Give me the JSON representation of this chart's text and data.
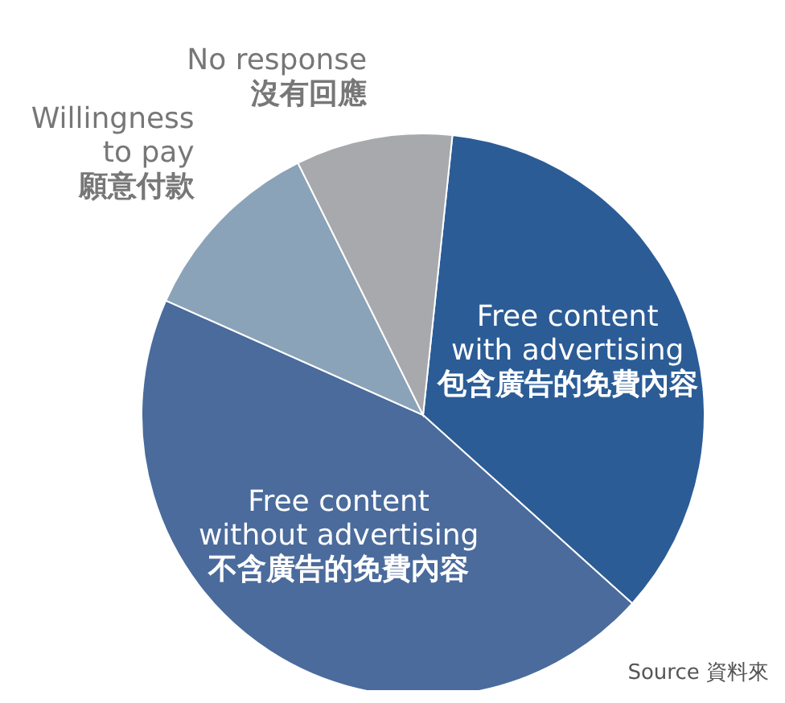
{
  "chart_data": {
    "type": "pie",
    "categories": [
      "Free content\nwith advertising\n包含廣告的免費內容",
      "Free content\nwithout advertising\n不含廣告的免費內容",
      "Willingness\nto pay\n願意付款",
      "No response\n沒有回應"
    ],
    "values": [
      35,
      45,
      11,
      9
    ],
    "colors": [
      "#2b5c96",
      "#4a6b9c",
      "#8aa3b8",
      "#a7a9ad"
    ],
    "annotations": [
      "Source 資料來"
    ]
  }
}
